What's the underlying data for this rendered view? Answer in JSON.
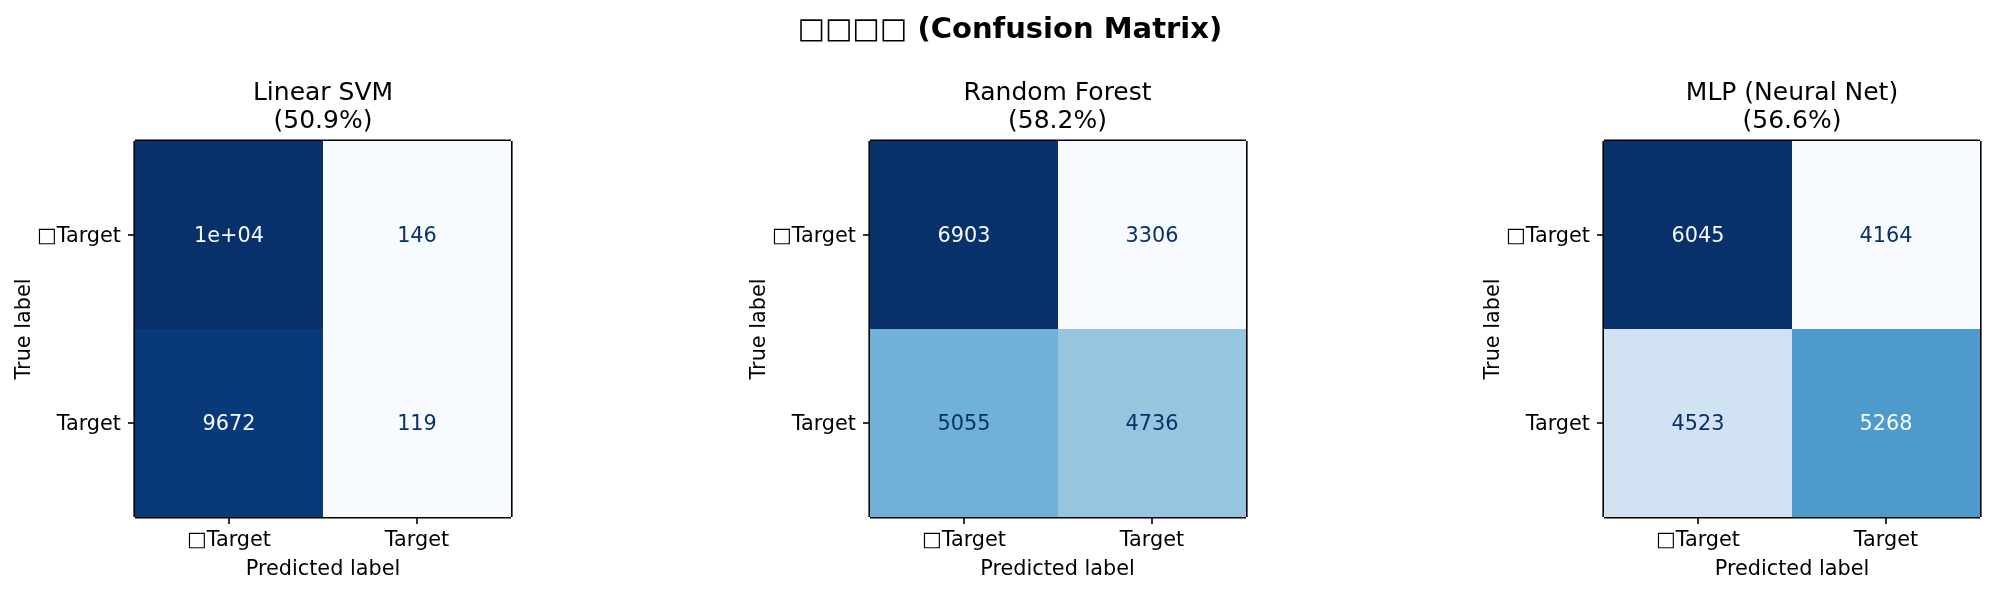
{
  "chart_data": [
    {
      "type": "other",
      "title": "□□□□ (Confusion Matrix)"
    },
    {
      "type": "heatmap",
      "title": "Linear SVM\n(50.9%)",
      "xlabel": "Predicted label",
      "ylabel": "True label",
      "categories": [
        "□Target",
        "Target"
      ],
      "y_categories": [
        "□Target",
        "Target"
      ],
      "cells": [
        [
          10000,
          146
        ],
        [
          9672,
          119
        ]
      ],
      "cell_labels": [
        [
          "1e+04",
          "146"
        ],
        [
          "9672",
          "119"
        ]
      ]
    },
    {
      "type": "heatmap",
      "title": "Random Forest\n(58.2%)",
      "xlabel": "Predicted label",
      "ylabel": "True label",
      "categories": [
        "□Target",
        "Target"
      ],
      "y_categories": [
        "□Target",
        "Target"
      ],
      "cells": [
        [
          6903,
          3306
        ],
        [
          5055,
          4736
        ]
      ],
      "data_labels": true
    },
    {
      "type": "heatmap",
      "title": "MLP (Neural Net)\n(56.6%)",
      "xlabel": "Predicted label",
      "ylabel": "True label",
      "categories": [
        "□Target",
        "Target"
      ],
      "y_categories": [
        "□Target",
        "Target"
      ],
      "cells": [
        [
          6045,
          4164
        ],
        [
          4523,
          5268
        ]
      ],
      "data_labels": true
    }
  ]
}
